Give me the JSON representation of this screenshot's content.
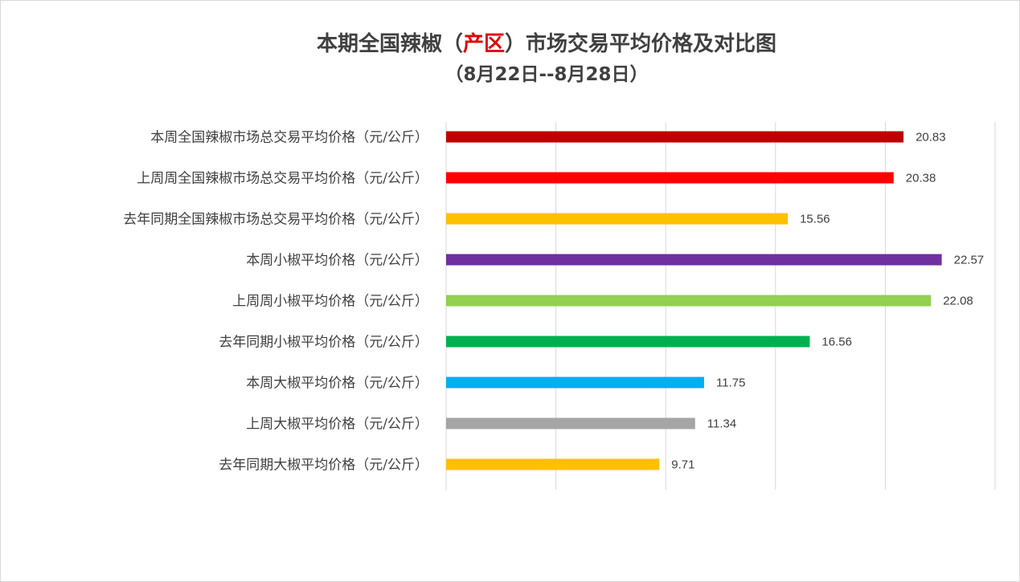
{
  "title": {
    "prefix": "本期全国辣椒（",
    "highlight": "产区",
    "suffix": "）市场交易平均价格及对比图",
    "highlight_color": "#e00000"
  },
  "subtitle": "（8月22日--8月28日）",
  "chart_data": {
    "type": "bar",
    "orientation": "horizontal",
    "categories": [
      "本周全国辣椒市场总交易平均价格（元/公斤）",
      "上周周全国辣椒市场总交易平均价格（元/公斤）",
      "去年同期全国辣椒市场总交易平均价格（元/公斤）",
      "本周小椒平均价格（元/公斤）",
      "上周周小椒平均价格（元/公斤）",
      "去年同期小椒平均价格（元/公斤）",
      "本周大椒平均价格（元/公斤）",
      "上周大椒平均价格（元/公斤）",
      "去年同期大椒平均价格（元/公斤）"
    ],
    "values": [
      20.83,
      20.38,
      15.56,
      22.57,
      22.08,
      16.56,
      11.75,
      11.34,
      9.71
    ],
    "value_labels": [
      "20.83",
      "20.38",
      "15.56",
      "22.57",
      "22.08",
      "16.56",
      "11.75",
      "11.34",
      "9.71"
    ],
    "colors": [
      "#c00000",
      "#ff0000",
      "#ffc000",
      "#7030a0",
      "#92d050",
      "#00b050",
      "#00b0f0",
      "#a5a5a5",
      "#ffc000"
    ],
    "xlim": [
      0,
      25
    ],
    "x_gridlines": [
      0,
      5,
      10,
      15,
      20,
      25
    ],
    "grid": true,
    "legend": "none"
  }
}
